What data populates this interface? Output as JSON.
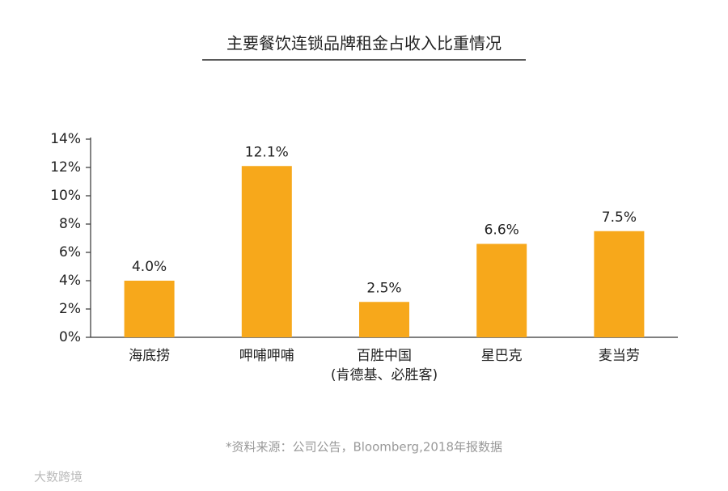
{
  "chart_data": {
    "type": "bar",
    "title": "主要餐饮连锁品牌租金占收入比重情况",
    "categories": [
      "海底捞",
      "呷哺呷哺",
      "百胜中国\n(肯德基、必胜客)",
      "星巴克",
      "麦当劳"
    ],
    "values": [
      4.0,
      12.1,
      2.5,
      6.6,
      7.5
    ],
    "value_labels": [
      "4.0%",
      "12.1%",
      "2.5%",
      "6.6%",
      "7.5%"
    ],
    "color": "#f7a81b",
    "ylim": [
      0,
      14
    ],
    "yticks": [
      {
        "value": 0,
        "label": "0%"
      },
      {
        "value": 2,
        "label": "2%"
      },
      {
        "value": 4,
        "label": "4%"
      },
      {
        "value": 6,
        "label": "6%"
      },
      {
        "value": 8,
        "label": "8%"
      },
      {
        "value": 10,
        "label": "10%"
      },
      {
        "value": 12,
        "label": "12%"
      },
      {
        "value": 14,
        "label": "14%"
      }
    ],
    "grid": false,
    "footnote": "*资料来源：公司公告，Bloomberg,2018年报数据",
    "watermark": "大数跨境"
  }
}
